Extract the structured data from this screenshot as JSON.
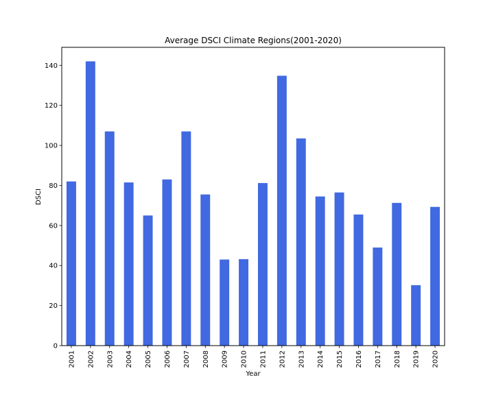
{
  "chart_data": {
    "type": "bar",
    "title": "Average DSCI Climate Regions(2001-2020)",
    "xlabel": "Year",
    "ylabel": "DSCI",
    "categories": [
      "2001",
      "2002",
      "2003",
      "2004",
      "2005",
      "2006",
      "2007",
      "2008",
      "2009",
      "2010",
      "2011",
      "2012",
      "2013",
      "2014",
      "2015",
      "2016",
      "2017",
      "2018",
      "2019",
      "2020"
    ],
    "values": [
      82,
      142,
      107,
      81.5,
      65,
      83,
      107,
      75.5,
      43,
      43.2,
      81.2,
      134.8,
      103.5,
      74.5,
      76.5,
      65.5,
      49,
      71.3,
      30.2,
      69.3
    ],
    "ylim": [
      0,
      149
    ],
    "yticks": [
      0,
      20,
      40,
      60,
      80,
      100,
      120,
      140
    ],
    "bar_color": "#4169e1",
    "grid": false,
    "legend": false
  }
}
